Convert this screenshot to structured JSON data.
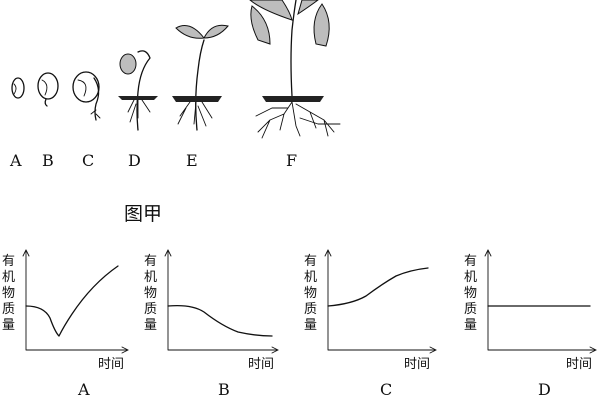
{
  "figure": {
    "caption": "图甲",
    "stages": [
      {
        "id": "seed-a",
        "label": "A"
      },
      {
        "id": "seed-b",
        "label": "B"
      },
      {
        "id": "seed-c",
        "label": "C"
      },
      {
        "id": "seed-d",
        "label": "D"
      },
      {
        "id": "seed-e",
        "label": "E"
      },
      {
        "id": "seed-f",
        "label": "F"
      }
    ]
  },
  "graphs": {
    "ylabel_chars": [
      "有",
      "机",
      "物",
      "质",
      "量"
    ],
    "xlabel": "时间",
    "panels": [
      {
        "label": "A"
      },
      {
        "label": "B"
      },
      {
        "label": "C"
      },
      {
        "label": "D"
      }
    ]
  },
  "chart_data": [
    {
      "type": "line",
      "xlabel": "时间",
      "ylabel": "有机物质量",
      "series": [
        {
          "x": [
            0,
            0.2,
            0.4,
            0.6,
            0.8,
            1.0
          ],
          "values": [
            0.5,
            0.4,
            0.15,
            0.5,
            0.75,
            0.92
          ]
        }
      ]
    },
    {
      "type": "line",
      "xlabel": "时间",
      "ylabel": "有机物质量",
      "series": [
        {
          "x": [
            0,
            0.2,
            0.4,
            0.6,
            0.8,
            1.0
          ],
          "values": [
            0.5,
            0.48,
            0.38,
            0.25,
            0.15,
            0.12
          ]
        }
      ]
    },
    {
      "type": "line",
      "xlabel": "时间",
      "ylabel": "有机物质量",
      "series": [
        {
          "x": [
            0,
            0.2,
            0.4,
            0.6,
            0.8,
            1.0
          ],
          "values": [
            0.5,
            0.55,
            0.62,
            0.75,
            0.85,
            0.88
          ]
        }
      ]
    },
    {
      "type": "line",
      "xlabel": "时间",
      "ylabel": "有机物质量",
      "series": [
        {
          "x": [
            0,
            1.0
          ],
          "values": [
            0.5,
            0.5
          ]
        }
      ]
    }
  ]
}
